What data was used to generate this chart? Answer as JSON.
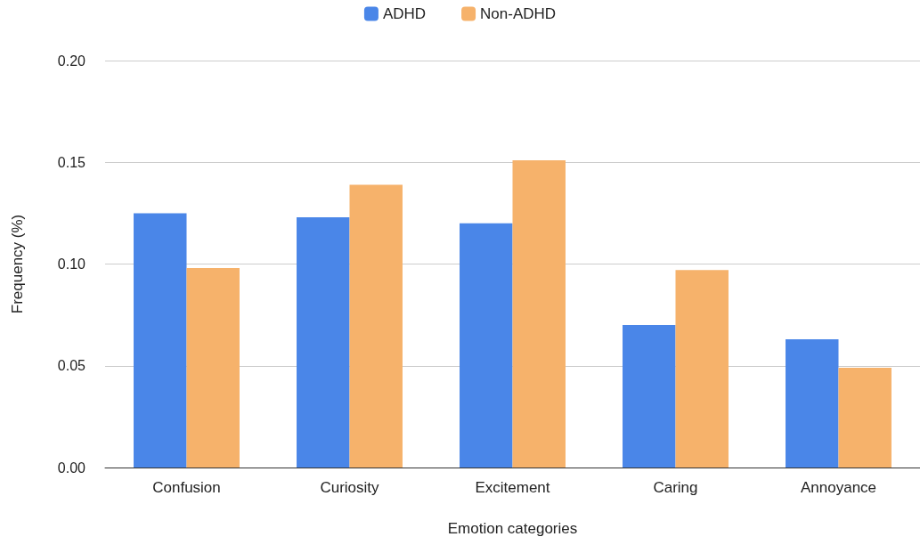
{
  "chart_data": {
    "type": "bar",
    "xlabel": "Emotion categories",
    "ylabel": "Frequency (%)",
    "categories": [
      "Confusion",
      "Curiosity",
      "Excitement",
      "Caring",
      "Annoyance"
    ],
    "series": [
      {
        "name": "ADHD",
        "color": "#4a86e8",
        "values": [
          0.125,
          0.123,
          0.12,
          0.07,
          0.063
        ]
      },
      {
        "name": "Non-ADHD",
        "color": "#f6b26b",
        "values": [
          0.098,
          0.139,
          0.151,
          0.097,
          0.049
        ]
      }
    ],
    "ylim": [
      0,
      0.2
    ],
    "yticks": [
      {
        "value": 0,
        "label": "0.00"
      },
      0.05,
      {
        "value": 0.1,
        "label": "0.10"
      },
      0.15,
      {
        "value": 0.2,
        "label": "0.20"
      }
    ],
    "grid": "y",
    "legend": "top"
  }
}
